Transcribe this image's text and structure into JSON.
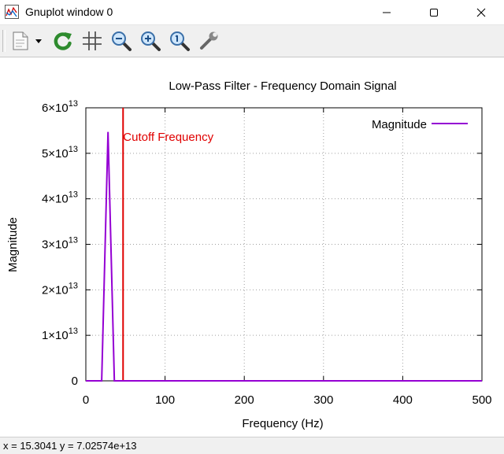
{
  "window": {
    "title": "Gnuplot window 0",
    "controls": {
      "minimize": "minimize",
      "maximize": "maximize",
      "close": "close"
    }
  },
  "toolbar": {
    "items": [
      {
        "name": "copy-to-clipboard",
        "icon": "clipboard-page-icon"
      },
      {
        "name": "options-dropdown",
        "icon": "dropdown-arrow-icon"
      },
      {
        "name": "replot",
        "icon": "refresh-icon"
      },
      {
        "name": "grid",
        "icon": "grid-icon"
      },
      {
        "name": "zoom-previous",
        "icon": "zoom-out-icon"
      },
      {
        "name": "zoom-next",
        "icon": "zoom-in-icon"
      },
      {
        "name": "autoscale",
        "icon": "zoom-reset-icon"
      },
      {
        "name": "options",
        "icon": "wrench-icon"
      }
    ]
  },
  "status": {
    "text": "x = 15.3041 y = 7.02574e+13"
  },
  "chart_data": {
    "type": "line",
    "title": "Low-Pass Filter - Frequency Domain Signal",
    "xlabel": "Frequency (Hz)",
    "ylabel": "Magnitude",
    "xlim": [
      0,
      500
    ],
    "ylim": [
      0,
      60000000000000.0
    ],
    "x_ticks": [
      0,
      100,
      200,
      300,
      400,
      500
    ],
    "x_tick_labels": [
      "0",
      "100",
      "200",
      "300",
      "400",
      "500"
    ],
    "y_ticks": [
      0,
      10000000000000.0,
      20000000000000.0,
      30000000000000.0,
      40000000000000.0,
      50000000000000.0,
      60000000000000.0
    ],
    "y_tick_labels": [
      {
        "mantissa": "0",
        "exp": ""
      },
      {
        "mantissa": "1×10",
        "exp": "13"
      },
      {
        "mantissa": "2×10",
        "exp": "13"
      },
      {
        "mantissa": "3×10",
        "exp": "13"
      },
      {
        "mantissa": "4×10",
        "exp": "13"
      },
      {
        "mantissa": "5×10",
        "exp": "13"
      },
      {
        "mantissa": "6×10",
        "exp": "13"
      }
    ],
    "legend": {
      "position": "top-right",
      "entries": [
        "Magnitude"
      ]
    },
    "series": [
      {
        "name": "Magnitude",
        "color": "#9400d3",
        "x": [
          0,
          20,
          28,
          36,
          500
        ],
        "y": [
          0,
          0,
          54700000000000.0,
          0,
          0
        ]
      }
    ],
    "annotations": [
      {
        "type": "vline",
        "x": 47,
        "color": "#e00000",
        "label": "Cutoff Frequency"
      }
    ]
  }
}
